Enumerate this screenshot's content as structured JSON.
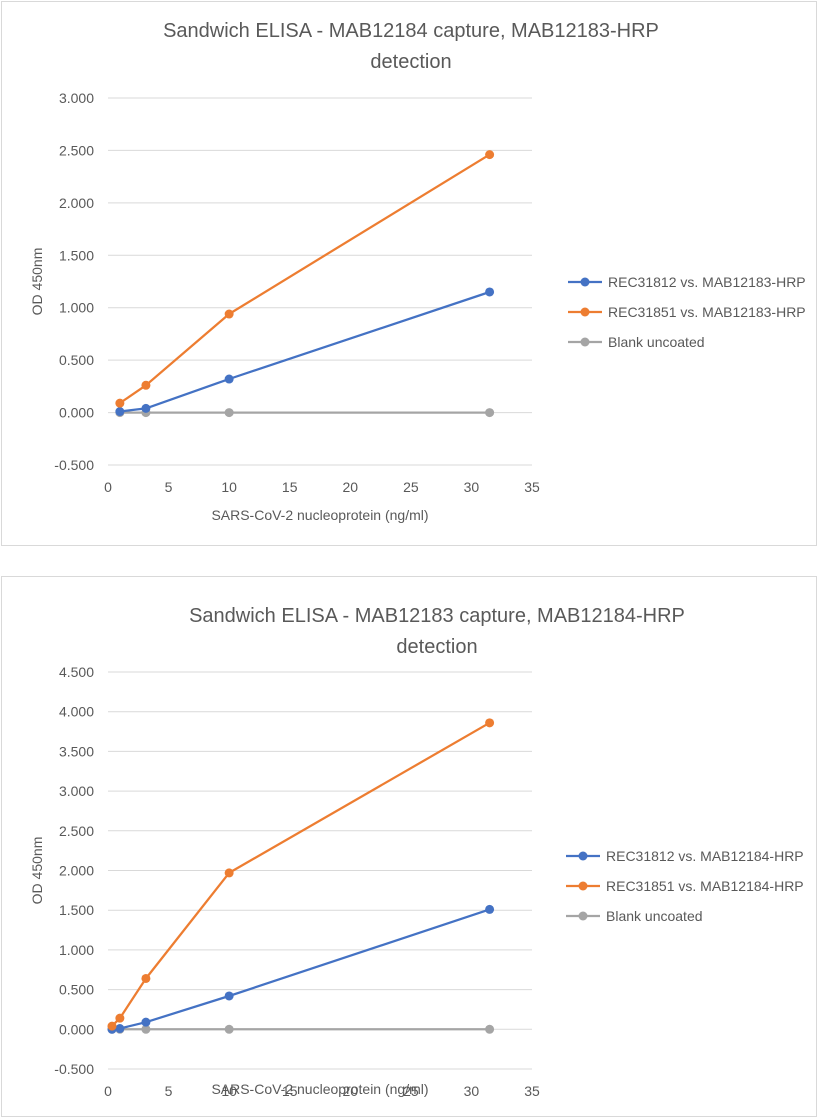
{
  "chart_data": [
    {
      "type": "line",
      "title_lines": [
        "Sandwich ELISA - MAB12184 capture, MAB12183-HRP",
        "detection"
      ],
      "xlabel": "SARS-CoV-2 nucleoprotein (ng/ml)",
      "ylabel": "OD 450nm",
      "xlim": [
        0,
        35
      ],
      "ylim": [
        -0.5,
        3.0
      ],
      "xticks": [
        0,
        5,
        10,
        15,
        20,
        25,
        30,
        35
      ],
      "yticks": [
        -0.5,
        0,
        0.5,
        1.0,
        1.5,
        2.0,
        2.5,
        3.0
      ],
      "ytick_labels": [
        "-0.500",
        "0.000",
        "0.500",
        "1.000",
        "1.500",
        "2.000",
        "2.500",
        "3.000"
      ],
      "grid": "horizontal",
      "legend_position": "right",
      "series": [
        {
          "name": "REC31812 vs. MAB12183-HRP",
          "color": "#4472c4",
          "x": [
            0.98,
            3.13,
            10,
            31.5
          ],
          "values": [
            0.01,
            0.04,
            0.32,
            1.15
          ]
        },
        {
          "name": "REC31851 vs. MAB12183-HRP",
          "color": "#ed7d31",
          "x": [
            0.98,
            3.13,
            10,
            31.5
          ],
          "values": [
            0.09,
            0.26,
            0.94,
            2.46
          ]
        },
        {
          "name": "Blank uncoated",
          "color": "#a5a5a5",
          "x": [
            0.98,
            3.13,
            10,
            31.5
          ],
          "values": [
            0.0,
            0.0,
            0.0,
            0.0
          ]
        }
      ]
    },
    {
      "type": "line",
      "title_lines": [
        "Sandwich ELISA - MAB12183 capture, MAB12184-HRP",
        "detection"
      ],
      "xlabel": "SARS-CoV-2 nucleoprotein (ng/ml)",
      "ylabel": "OD 450nm",
      "xlim": [
        0,
        35
      ],
      "ylim": [
        -0.5,
        4.5
      ],
      "xticks": [
        0,
        5,
        10,
        15,
        20,
        25,
        30,
        35
      ],
      "yticks": [
        -0.5,
        0,
        0.5,
        1.0,
        1.5,
        2.0,
        2.5,
        3.0,
        3.5,
        4.0,
        4.5
      ],
      "ytick_labels": [
        "-0.500",
        "0.000",
        "0.500",
        "1.000",
        "1.500",
        "2.000",
        "2.500",
        "3.000",
        "3.500",
        "4.000",
        "4.500"
      ],
      "grid": "horizontal",
      "legend_position": "right",
      "series": [
        {
          "name": "REC31812 vs. MAB12184-HRP",
          "color": "#4472c4",
          "x": [
            0.33,
            0.98,
            3.13,
            10,
            31.5
          ],
          "values": [
            0.0,
            0.01,
            0.09,
            0.42,
            1.51
          ]
        },
        {
          "name": "REC31851 vs. MAB12184-HRP",
          "color": "#ed7d31",
          "x": [
            0.33,
            0.98,
            3.13,
            10,
            31.5
          ],
          "values": [
            0.04,
            0.14,
            0.64,
            1.97,
            3.86
          ]
        },
        {
          "name": "Blank uncoated",
          "color": "#a5a5a5",
          "x": [
            0.33,
            0.98,
            3.13,
            10,
            31.5
          ],
          "values": [
            0.0,
            0.0,
            0.0,
            0.0,
            0.0
          ]
        }
      ]
    }
  ]
}
